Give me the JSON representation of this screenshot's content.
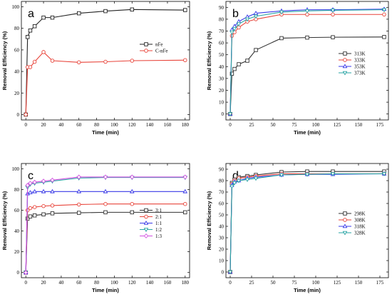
{
  "figure": {
    "panels": [
      {
        "letter": "a",
        "xlabel": "Time (min)",
        "ylabel": "Removal Efficiency (%)",
        "xlim": [
          -5,
          185
        ],
        "ylim": [
          -5,
          105
        ],
        "xticks": [
          0,
          20,
          40,
          60,
          80,
          100,
          120,
          140,
          160,
          180
        ],
        "yticks": [
          0,
          20,
          40,
          60,
          80,
          100
        ],
        "legend_position": "right-middle",
        "series": [
          {
            "name": "nFe",
            "color": "#222222",
            "marker": "square",
            "x": [
              0,
              2,
              5,
              10,
              20,
              30,
              60,
              90,
              120,
              180
            ],
            "y": [
              0,
              72,
              78,
              82,
              90,
              90,
              94,
              96,
              97.5,
              97
            ]
          },
          {
            "name": "C-nFe",
            "color": "#e8443a",
            "marker": "circle",
            "x": [
              0,
              2,
              5,
              10,
              20,
              30,
              60,
              90,
              120,
              180
            ],
            "y": [
              0,
              44,
              44,
              49,
              58,
              50,
              48.5,
              49,
              50,
              50.5
            ]
          }
        ]
      },
      {
        "letter": "b",
        "xlabel": "Time (min)",
        "ylabel": "Removal Efficiency (%)",
        "xlim": [
          -5,
          185
        ],
        "ylim": [
          -5,
          95
        ],
        "xticks": [
          0,
          25,
          50,
          75,
          100,
          125,
          150,
          175
        ],
        "yticks": [
          0,
          10,
          20,
          30,
          40,
          50,
          60,
          70,
          80,
          90
        ],
        "legend_position": "right-middle",
        "series": [
          {
            "name": "313K",
            "color": "#333333",
            "marker": "square",
            "x": [
              0,
              2,
              5,
              10,
              20,
              30,
              60,
              90,
              120,
              180
            ],
            "y": [
              0,
              34,
              38,
              42,
              45,
              54,
              64,
              64.5,
              64.8,
              65
            ]
          },
          {
            "name": "333K",
            "color": "#e8443a",
            "marker": "circle",
            "x": [
              0,
              2,
              5,
              10,
              20,
              30,
              60,
              90,
              120,
              180
            ],
            "y": [
              0,
              66,
              69,
              73,
              78,
              80,
              84,
              84,
              84,
              84
            ]
          },
          {
            "name": "353K",
            "color": "#3a3ae8",
            "marker": "triangle",
            "x": [
              0,
              2,
              5,
              10,
              20,
              30,
              60,
              90,
              120,
              180
            ],
            "y": [
              0,
              71,
              74,
              78,
              82,
              85,
              87,
              88,
              88,
              88.5
            ]
          },
          {
            "name": "373K",
            "color": "#2aa5a5",
            "marker": "triangle-down",
            "x": [
              0,
              2,
              5,
              10,
              20,
              30,
              60,
              90,
              120,
              180
            ],
            "y": [
              0,
              69,
              72,
              76,
              80,
              82.5,
              86,
              87,
              87.5,
              88
            ]
          }
        ]
      },
      {
        "letter": "c",
        "xlabel": "Time (min)",
        "ylabel": "Removal Efficiency (%)",
        "xlim": [
          -5,
          185
        ],
        "ylim": [
          -5,
          105
        ],
        "xticks": [
          0,
          20,
          40,
          60,
          80,
          100,
          120,
          140,
          160,
          180
        ],
        "yticks": [
          0,
          20,
          40,
          60,
          80,
          100
        ],
        "legend_position": "right-middle",
        "series": [
          {
            "name": "3:1",
            "color": "#333333",
            "marker": "square",
            "x": [
              0,
              2,
              5,
              10,
              20,
              30,
              60,
              90,
              120,
              180
            ],
            "y": [
              0,
              52,
              54,
              55,
              56,
              57,
              57.5,
              58,
              58,
              58
            ]
          },
          {
            "name": "2:1",
            "color": "#e8443a",
            "marker": "circle",
            "x": [
              0,
              2,
              5,
              10,
              20,
              30,
              60,
              90,
              120,
              180
            ],
            "y": [
              0,
              60,
              62,
              63,
              64,
              64.5,
              65.5,
              66,
              66,
              66
            ]
          },
          {
            "name": "1:1",
            "color": "#3a3ae8",
            "marker": "triangle",
            "x": [
              0,
              2,
              5,
              10,
              20,
              30,
              60,
              90,
              120,
              180
            ],
            "y": [
              0,
              76,
              77,
              78,
              78,
              78,
              78,
              78,
              78,
              78
            ]
          },
          {
            "name": "1:2",
            "color": "#2aa5a5",
            "marker": "triangle-down",
            "x": [
              0,
              2,
              5,
              10,
              20,
              30,
              60,
              90,
              120,
              180
            ],
            "y": [
              0,
              82,
              85,
              86,
              87,
              88,
              91,
              91.5,
              91.5,
              91.5
            ]
          },
          {
            "name": "1:3",
            "color": "#d24fe0",
            "marker": "diamond",
            "x": [
              0,
              2,
              5,
              10,
              20,
              30,
              60,
              90,
              120,
              180
            ],
            "y": [
              0,
              84,
              86,
              87,
              88,
              89,
              92,
              92,
              92,
              92
            ]
          }
        ]
      },
      {
        "letter": "d",
        "xlabel": "Time (min)",
        "ylabel": "Removal Efficiency (%)",
        "xlim": [
          -5,
          185
        ],
        "ylim": [
          -5,
          95
        ],
        "xticks": [
          0,
          25,
          50,
          75,
          100,
          125,
          150,
          175
        ],
        "yticks": [
          0,
          10,
          20,
          30,
          40,
          50,
          60,
          70,
          80,
          90
        ],
        "legend_position": "right-middle",
        "series": [
          {
            "name": "298K",
            "color": "#333333",
            "marker": "square",
            "x": [
              0,
              2,
              5,
              10,
              20,
              30,
              60,
              90,
              120,
              180
            ],
            "y": [
              0,
              78,
              81,
              83,
              84,
              85,
              87.5,
              88,
              88,
              88
            ]
          },
          {
            "name": "308K",
            "color": "#e8443a",
            "marker": "circle",
            "x": [
              0,
              2,
              5,
              10,
              20,
              30,
              60,
              90,
              120,
              180
            ],
            "y": [
              0,
              77,
              80,
              82,
              83,
              84,
              86,
              86,
              86,
              86
            ]
          },
          {
            "name": "318K",
            "color": "#3a3ae8",
            "marker": "triangle",
            "x": [
              0,
              2,
              5,
              10,
              20,
              30,
              60,
              90,
              120,
              180
            ],
            "y": [
              0,
              76,
              79,
              80,
              82,
              83,
              85,
              85.5,
              85.5,
              86
            ]
          },
          {
            "name": "328K",
            "color": "#2aa5a5",
            "marker": "triangle-down",
            "x": [
              0,
              2,
              5,
              10,
              20,
              30,
              60,
              90,
              120,
              180
            ],
            "y": [
              0,
              75,
              78,
              80,
              81,
              82,
              85,
              85.5,
              86,
              86
            ]
          }
        ]
      }
    ]
  },
  "chart_data": [
    {
      "type": "line",
      "letter": "a",
      "xlabel": "Time (min)",
      "ylabel": "Removal Efficiency (%)",
      "xlim": [
        -5,
        185
      ],
      "ylim": [
        -5,
        105
      ],
      "legend": [
        "nFe",
        "C-nFe"
      ],
      "x": [
        0,
        2,
        5,
        10,
        20,
        30,
        60,
        90,
        120,
        180
      ],
      "series": [
        {
          "name": "nFe",
          "values": [
            0,
            72,
            78,
            82,
            90,
            90,
            94,
            96,
            97.5,
            97
          ]
        },
        {
          "name": "C-nFe",
          "values": [
            0,
            44,
            44,
            49,
            58,
            50,
            48.5,
            49,
            50,
            50.5
          ]
        }
      ]
    },
    {
      "type": "line",
      "letter": "b",
      "xlabel": "Time (min)",
      "ylabel": "Removal Efficiency (%)",
      "xlim": [
        -5,
        185
      ],
      "ylim": [
        -5,
        95
      ],
      "legend": [
        "313K",
        "333K",
        "353K",
        "373K"
      ],
      "x": [
        0,
        2,
        5,
        10,
        20,
        30,
        60,
        90,
        120,
        180
      ],
      "series": [
        {
          "name": "313K",
          "values": [
            0,
            34,
            38,
            42,
            45,
            54,
            64,
            64.5,
            64.8,
            65
          ]
        },
        {
          "name": "333K",
          "values": [
            0,
            66,
            69,
            73,
            78,
            80,
            84,
            84,
            84,
            84
          ]
        },
        {
          "name": "353K",
          "values": [
            0,
            71,
            74,
            78,
            82,
            85,
            87,
            88,
            88,
            88.5
          ]
        },
        {
          "name": "373K",
          "values": [
            0,
            69,
            72,
            76,
            80,
            82.5,
            86,
            87,
            87.5,
            88
          ]
        }
      ]
    },
    {
      "type": "line",
      "letter": "c",
      "xlabel": "Time (min)",
      "ylabel": "Removal Efficiency (%)",
      "xlim": [
        -5,
        185
      ],
      "ylim": [
        -5,
        105
      ],
      "legend": [
        "3:1",
        "2:1",
        "1:1",
        "1:2",
        "1:3"
      ],
      "x": [
        0,
        2,
        5,
        10,
        20,
        30,
        60,
        90,
        120,
        180
      ],
      "series": [
        {
          "name": "3:1",
          "values": [
            0,
            52,
            54,
            55,
            56,
            57,
            57.5,
            58,
            58,
            58
          ]
        },
        {
          "name": "2:1",
          "values": [
            0,
            60,
            62,
            63,
            64,
            64.5,
            65.5,
            66,
            66,
            66
          ]
        },
        {
          "name": "1:1",
          "values": [
            0,
            76,
            77,
            78,
            78,
            78,
            78,
            78,
            78,
            78
          ]
        },
        {
          "name": "1:2",
          "values": [
            0,
            82,
            85,
            86,
            87,
            88,
            91,
            91.5,
            91.5,
            91.5
          ]
        },
        {
          "name": "1:3",
          "values": [
            0,
            84,
            86,
            87,
            88,
            89,
            92,
            92,
            92,
            92
          ]
        }
      ]
    },
    {
      "type": "line",
      "letter": "d",
      "xlabel": "Time (min)",
      "ylabel": "Removal Efficiency (%)",
      "xlim": [
        -5,
        185
      ],
      "ylim": [
        -5,
        95
      ],
      "legend": [
        "298K",
        "308K",
        "318K",
        "328K"
      ],
      "x": [
        0,
        2,
        5,
        10,
        20,
        30,
        60,
        90,
        120,
        180
      ],
      "series": [
        {
          "name": "298K",
          "values": [
            0,
            78,
            81,
            83,
            84,
            85,
            87.5,
            88,
            88,
            88
          ]
        },
        {
          "name": "308K",
          "values": [
            0,
            77,
            80,
            82,
            83,
            84,
            86,
            86,
            86,
            86
          ]
        },
        {
          "name": "318K",
          "values": [
            0,
            76,
            79,
            80,
            82,
            83,
            85,
            85.5,
            85.5,
            86
          ]
        },
        {
          "name": "328K",
          "values": [
            0,
            75,
            78,
            80,
            81,
            82,
            85,
            85.5,
            86,
            86
          ]
        }
      ]
    }
  ]
}
